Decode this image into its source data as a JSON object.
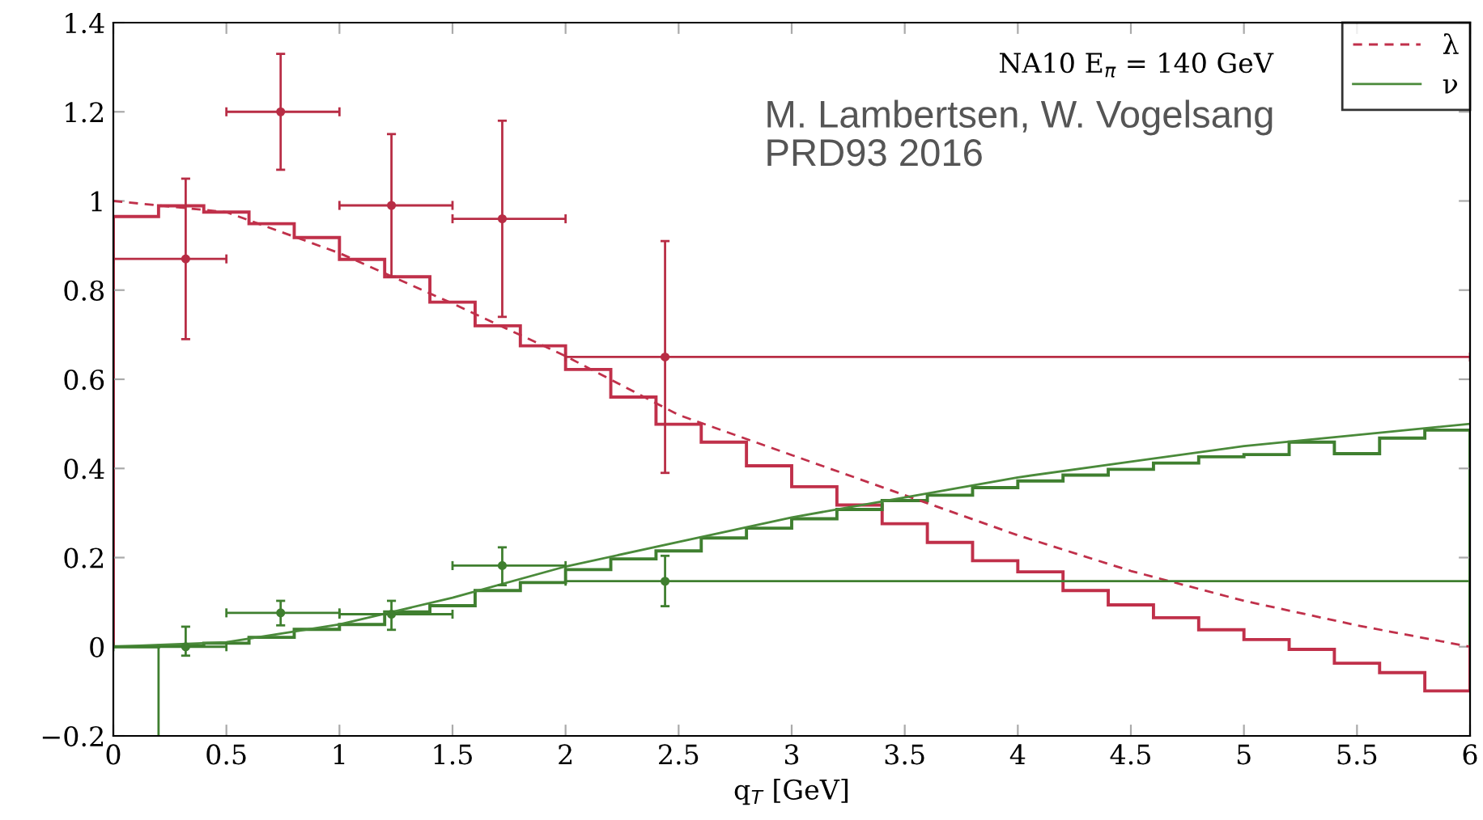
{
  "chart_data": {
    "type": "line",
    "xlabel": "q$_{T}$ [GeV]",
    "xlim": [
      0,
      6
    ],
    "ylim": [
      -0.2,
      1.4
    ],
    "xticks": [
      0,
      0.5,
      1,
      1.5,
      2,
      2.5,
      3,
      3.5,
      4,
      4.5,
      5,
      5.5,
      6
    ],
    "yticks": [
      {
        "value": -0.2,
        "label": "−0.2"
      },
      0,
      0.2,
      0.4,
      0.6,
      0.8,
      1,
      1.2,
      1.4
    ],
    "grid": false,
    "legend": "top right",
    "annotations": [
      "NA10 E$_{π}$ = 140 GeV",
      "M. Lambertsen, W. Vogelsang\nPRD93 2016"
    ],
    "series": [
      {
        "name": "λ",
        "type": "line",
        "line_style": "dashed",
        "color": "#c0304a",
        "x": [
          0,
          0.5,
          1,
          1.5,
          2,
          2.5,
          3,
          3.5,
          4,
          4.5,
          5,
          5.5,
          6
        ],
        "values": [
          1.0,
          0.975,
          0.883,
          0.77,
          0.652,
          0.52,
          0.43,
          0.34,
          0.25,
          0.17,
          0.103,
          0.048,
          0.0
        ]
      },
      {
        "name": "ν",
        "type": "line",
        "line_style": "solid",
        "color": "#4a8a3a",
        "x": [
          0,
          0.5,
          1,
          1.5,
          2,
          2.5,
          3,
          3.5,
          4,
          4.5,
          5,
          5.5,
          6
        ],
        "values": [
          0,
          0.01,
          0.05,
          0.11,
          0.18,
          0.235,
          0.29,
          0.335,
          0.38,
          0.415,
          0.45,
          0.475,
          0.5
        ]
      },
      {
        "type": "histogram",
        "color": "#c0304a",
        "bins": [
          0,
          0.2,
          0.4,
          0.6,
          0.8,
          1,
          1.2,
          1.4,
          1.6,
          1.8,
          2,
          2.2,
          2.4,
          2.6,
          2.8,
          3,
          3.2,
          3.4,
          3.6,
          3.8,
          4,
          4.2,
          4.4,
          4.6,
          4.8,
          5,
          5.2,
          5.4,
          5.6,
          5.8,
          6
        ],
        "values": [
          0.965,
          0.989,
          0.975,
          0.949,
          0.918,
          0.869,
          0.83,
          0.773,
          0.72,
          0.675,
          0.622,
          0.56,
          0.499,
          0.459,
          0.406,
          0.359,
          0.318,
          0.276,
          0.234,
          0.193,
          0.168,
          0.126,
          0.094,
          0.065,
          0.038,
          0.016,
          -0.006,
          -0.037,
          -0.058,
          -0.099
        ]
      },
      {
        "type": "histogram",
        "color": "#3f7f2f",
        "bins": [
          0,
          0.2,
          0.4,
          0.6,
          0.8,
          1,
          1.2,
          1.4,
          1.6,
          1.8,
          2,
          2.2,
          2.4,
          2.6,
          2.8,
          3,
          3.2,
          3.4,
          3.6,
          3.8,
          4,
          4.2,
          4.4,
          4.6,
          4.8,
          5,
          5.2,
          5.4,
          5.6,
          5.8,
          6
        ],
        "values": [
          0,
          0.002,
          0.008,
          0.021,
          0.039,
          0.05,
          0.078,
          0.092,
          0.126,
          0.144,
          0.173,
          0.197,
          0.215,
          0.244,
          0.266,
          0.287,
          0.308,
          0.328,
          0.34,
          0.357,
          0.372,
          0.385,
          0.398,
          0.412,
          0.426,
          0.431,
          0.459,
          0.433,
          0.468,
          0.486
        ]
      },
      {
        "type": "line",
        "line_style": "solid",
        "color": "#3f7f2f",
        "x": [
          0.2,
          0.2
        ],
        "values": [
          0,
          -0.2
        ]
      },
      {
        "type": "scatter",
        "marker": "circle",
        "color": "#b82d45",
        "x": [
          0.32,
          0.74,
          1.23,
          1.72,
          2.44
        ],
        "values": [
          0.87,
          1.2,
          0.99,
          0.96,
          0.65
        ],
        "errors": [
          [
            0.69,
            1.05
          ],
          [
            1.07,
            1.33
          ],
          [
            0.83,
            1.15
          ],
          [
            0.74,
            1.18
          ],
          [
            0.39,
            0.91
          ]
        ],
        "xerrors": [
          [
            0,
            0.5
          ],
          [
            0.5,
            1
          ],
          [
            1,
            1.5
          ],
          [
            1.5,
            2
          ],
          [
            2,
            6
          ]
        ]
      },
      {
        "type": "scatter",
        "marker": "circle",
        "color": "#3f7f2f",
        "x": [
          0.32,
          0.74,
          1.23,
          1.72,
          2.44
        ],
        "values": [
          0.0,
          0.076,
          0.073,
          0.182,
          0.147
        ],
        "errors": [
          [
            -0.02,
            0.045
          ],
          [
            0.048,
            0.103
          ],
          [
            0.038,
            0.103
          ],
          [
            0.138,
            0.223
          ],
          [
            0.091,
            0.204
          ]
        ],
        "xerrors": [
          [
            0,
            0.5
          ],
          [
            0.5,
            1
          ],
          [
            1,
            1.5
          ],
          [
            1.5,
            2
          ],
          [
            2,
            6
          ]
        ]
      }
    ]
  }
}
